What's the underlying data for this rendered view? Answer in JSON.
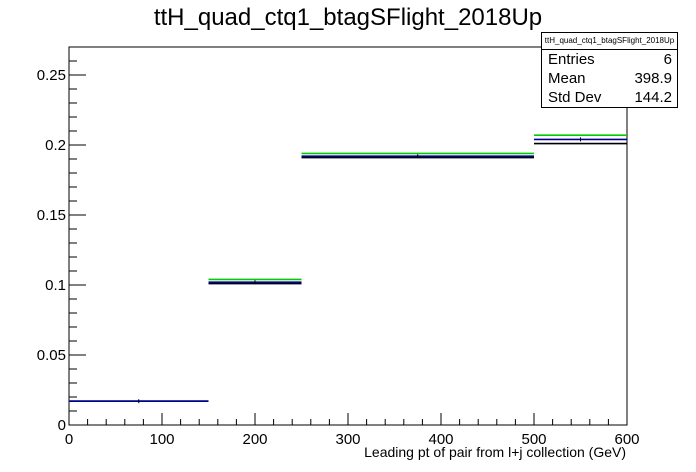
{
  "chart_data": {
    "type": "step",
    "title": "ttH_quad_ctq1_btagSFlight_2018Up",
    "xlabel": "Leading pt of pair from l+j collection (GeV)",
    "ylabel": "",
    "xlim": [
      0,
      600
    ],
    "ylim": [
      0,
      0.27
    ],
    "x_ticks": [
      0,
      100,
      200,
      300,
      400,
      500,
      600
    ],
    "x_tick_labels": [
      "0",
      "100",
      "200",
      "300",
      "400",
      "500",
      "600"
    ],
    "y_ticks": [
      0,
      0.05,
      0.1,
      0.15,
      0.2,
      0.25
    ],
    "y_tick_labels": [
      "0",
      "0.05",
      "0.1",
      "0.15",
      "0.2",
      "0.25"
    ],
    "bin_edges": [
      0,
      150,
      250,
      500,
      600
    ],
    "series": [
      {
        "color": "#00cc00",
        "values": [
          0.017,
          0.104,
          0.194,
          0.207
        ]
      },
      {
        "color": "#000000",
        "values": [
          0.017,
          0.101,
          0.191,
          0.201
        ]
      },
      {
        "color": "#000099",
        "values": [
          0.017,
          0.102,
          0.192,
          0.204
        ]
      }
    ],
    "grid": false
  },
  "stats": {
    "name": "ttH_quad_ctq1_btagSFlight_2018Up",
    "entries_label": "Entries",
    "entries_value": "6",
    "mean_label": "Mean",
    "mean_value": "398.9",
    "stddev_label": "Std Dev",
    "stddev_value": "144.2"
  }
}
